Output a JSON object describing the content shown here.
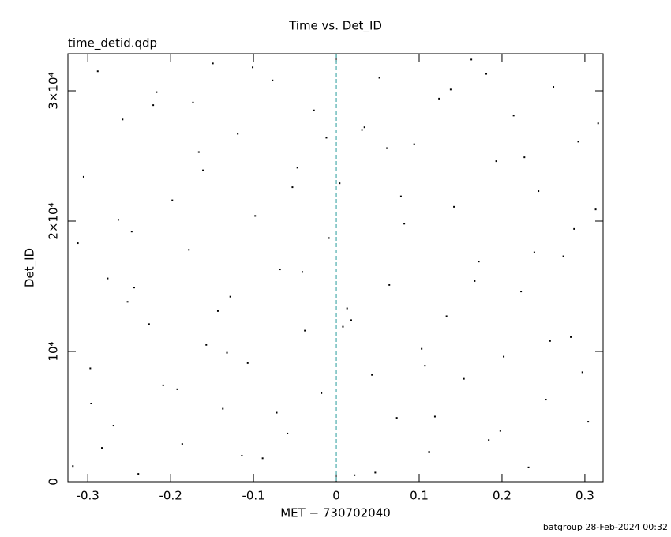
{
  "chart_data": {
    "type": "scatter",
    "title": "Time vs. Det_ID",
    "subtitle": "time_detid.qdp",
    "x_label": "MET − 730702040",
    "y_label": "Det_ID",
    "footer": "batgroup 28-Feb-2024 00:32",
    "xlim": [
      -0.324,
      0.322
    ],
    "ylim": [
      0,
      32848
    ],
    "xticks": [
      -0.3,
      -0.2,
      -0.1,
      0,
      0.1,
      0.2,
      0.3
    ],
    "yticks": [
      0,
      {
        "value": 10000,
        "label": "10⁴"
      },
      {
        "value": 20000,
        "label": "2×10⁴"
      },
      {
        "value": 30000,
        "label": "3×10⁴"
      }
    ],
    "vline": {
      "x": 0,
      "color": "#2a9d9d"
    },
    "color": "#000000",
    "series": [
      {
        "name": "Det_ID",
        "x": [
          -0.318,
          -0.305,
          -0.297,
          -0.288,
          -0.276,
          -0.269,
          -0.258,
          -0.247,
          -0.239,
          -0.226,
          -0.217,
          -0.209,
          -0.198,
          -0.186,
          -0.178,
          -0.166,
          -0.157,
          -0.149,
          -0.137,
          -0.128,
          -0.119,
          -0.107,
          -0.098,
          -0.089,
          -0.077,
          -0.068,
          -0.059,
          -0.047,
          -0.038,
          -0.027,
          -0.018,
          -0.009,
          0.004,
          0.013,
          0.022,
          0.034,
          0.043,
          0.052,
          0.064,
          0.073,
          0.082,
          0.094,
          0.103,
          0.112,
          0.124,
          0.133,
          0.142,
          0.154,
          0.163,
          0.172,
          0.184,
          0.193,
          0.202,
          0.214,
          0.223,
          0.232,
          0.244,
          0.253,
          0.262,
          0.274,
          0.283,
          0.292,
          0.304,
          0.313,
          -0.312,
          -0.283,
          -0.252,
          -0.221,
          -0.192,
          -0.161,
          -0.132,
          -0.101,
          -0.072,
          -0.041,
          -0.012,
          0.018,
          0.047,
          0.078,
          0.107,
          0.138,
          0.167,
          0.198,
          0.227,
          0.258,
          0.287,
          0.316,
          -0.296,
          -0.244,
          -0.173,
          -0.114,
          -0.053,
          0.008,
          0.061,
          0.119,
          0.181,
          0.239,
          0.297,
          -0.263,
          -0.143,
          0.031
        ],
        "values": [
          1200,
          23400,
          8700,
          31500,
          15600,
          4300,
          27800,
          19200,
          600,
          12100,
          29900,
          7400,
          21600,
          2900,
          17800,
          25300,
          10500,
          32100,
          5600,
          14200,
          26700,
          9100,
          20400,
          1800,
          30800,
          16300,
          3700,
          24100,
          11600,
          28500,
          6800,
          18700,
          22900,
          13300,
          500,
          27200,
          8200,
          31000,
          15100,
          4900,
          19800,
          25900,
          10200,
          2300,
          29400,
          12700,
          21100,
          7900,
          32400,
          16900,
          3200,
          24600,
          9600,
          28100,
          14600,
          1100,
          22300,
          6300,
          30300,
          17300,
          11100,
          26100,
          4600,
          20900,
          18300,
          2600,
          13800,
          28900,
          7100,
          23900,
          9900,
          31800,
          5300,
          16100,
          26400,
          12400,
          700,
          21900,
          8900,
          30100,
          15400,
          3900,
          24900,
          10800,
          19400,
          27500,
          6000,
          14900,
          29100,
          2000,
          22600,
          11900,
          25600,
          5000,
          31300,
          17600,
          8400,
          20100,
          13100,
          27000
        ]
      }
    ]
  }
}
